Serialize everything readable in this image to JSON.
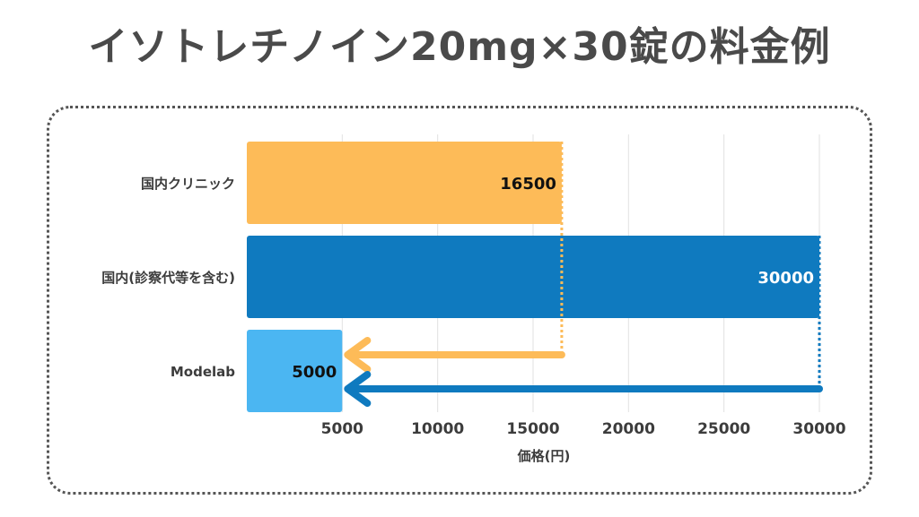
{
  "title": "イソトレチノイン20mg×30錠の料金例",
  "colors": {
    "orange": "#FDBB58",
    "blue": "#0F7ABF",
    "lightblue": "#4BB6F2",
    "grid": "#e2e2e2",
    "label": "#3c3c3c"
  },
  "chart_data": {
    "type": "bar",
    "orientation": "horizontal",
    "title": "",
    "xlabel": "価格(円)",
    "ylabel": "",
    "xlim": [
      0,
      30000
    ],
    "xticks": [
      5000,
      10000,
      15000,
      20000,
      25000,
      30000
    ],
    "grid": true,
    "categories": [
      "国内クリニック",
      "国内(診察代等を含む)",
      "Modelab"
    ],
    "values": [
      16500,
      30000,
      5000
    ],
    "data_labels": [
      "16500",
      "30000",
      "5000"
    ],
    "bar_colors": [
      "#FDBB58",
      "#0F7ABF",
      "#4BB6F2"
    ],
    "label_colors": [
      "#111111",
      "#ffffff",
      "#111111"
    ],
    "annotations": [
      {
        "type": "arrow",
        "from": 16500,
        "to": 5000,
        "color": "#FDBB58"
      },
      {
        "type": "arrow",
        "from": 30000,
        "to": 5000,
        "color": "#0F7ABF"
      }
    ]
  }
}
